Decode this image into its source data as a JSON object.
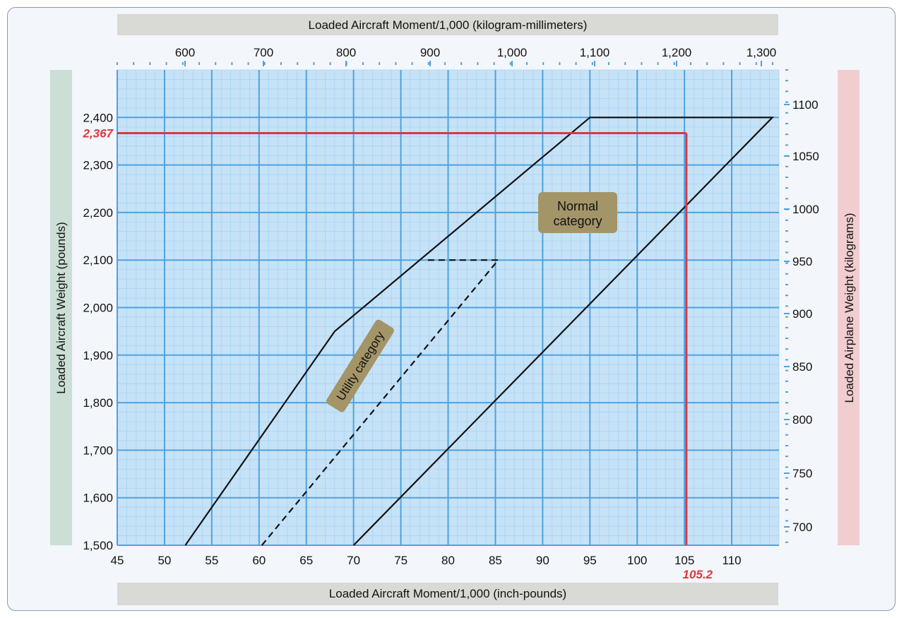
{
  "chart_data": {
    "type": "line",
    "top_axis_label": "Loaded Aircraft Moment/1,000 (kilogram-millimeters)",
    "bottom_axis_label": "Loaded Aircraft Moment/1,000 (inch-pounds)",
    "left_axis_label": "Loaded  Aircraft Weight (pounds)",
    "right_axis_label": "Loaded Airplane Weight (kilograms)",
    "x_inch_lbs": {
      "range": [
        45,
        115
      ],
      "ticks": [
        45,
        50,
        55,
        60,
        65,
        70,
        75,
        80,
        85,
        90,
        95,
        100,
        105,
        110
      ]
    },
    "x_kg_mm": {
      "ticks": [
        "600",
        "700",
        "800",
        "900",
        "1,000",
        "1,100",
        "1,200",
        "1,300"
      ]
    },
    "y_pounds": {
      "range": [
        1500,
        2500
      ],
      "ticks": [
        1500,
        1600,
        1700,
        1800,
        1900,
        2000,
        2100,
        2200,
        2300,
        2400
      ],
      "tick_labels": [
        "1,500",
        "1,600",
        "1,700",
        "1,800",
        "1,900",
        "2,000",
        "2,100",
        "2,200",
        "2,300",
        "2,400"
      ]
    },
    "y_kilograms": {
      "ticks": [
        700,
        750,
        800,
        850,
        900,
        950,
        1000,
        1050,
        1100
      ],
      "tick_labels": [
        "700",
        "750",
        "800",
        "850",
        "900",
        "950",
        "1,000",
        "1,050",
        "1,100"
      ]
    },
    "grid": true,
    "envelope_normal": [
      [
        52.2,
        1500
      ],
      [
        68,
        1950
      ],
      [
        95,
        2400
      ],
      [
        114.3,
        2400
      ],
      [
        70,
        1500
      ]
    ],
    "envelope_utility_dashed": [
      [
        60.3,
        1500
      ],
      [
        85.3,
        2100
      ],
      [
        77.5,
        2100
      ]
    ],
    "example_weight": {
      "value": 2367,
      "label": "2,367"
    },
    "example_moment": {
      "value": 105.2,
      "label": "105.2"
    },
    "annotations": {
      "normal": [
        "Normal",
        "category"
      ],
      "utility": "Utility category"
    },
    "colors": {
      "grid_major": "#4da3e0",
      "grid_minor": "#a8d4f3",
      "plot_bg": "#c6e2f7",
      "example": "#e0353d",
      "envelope": "#111111",
      "label_box": "#a39567"
    }
  }
}
